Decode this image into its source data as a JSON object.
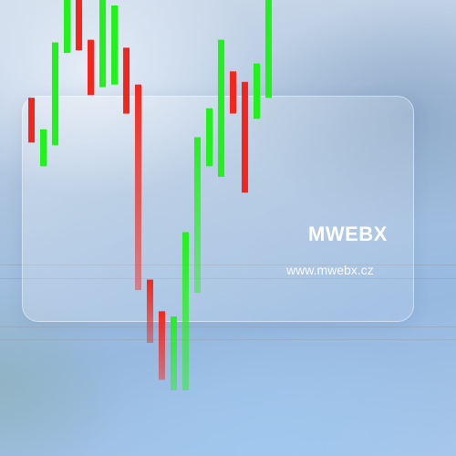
{
  "brand": {
    "name": "MWEBX",
    "url": "www.mwebx.cz"
  },
  "colors": {
    "up": "#22f21c",
    "down": "#f2261c"
  },
  "chart_data": {
    "type": "bar",
    "description_kind": "candlestick-style price bars",
    "bars": [
      {
        "low": 30,
        "high": 47,
        "dir": "down"
      },
      {
        "low": 21,
        "high": 35,
        "dir": "up"
      },
      {
        "low": 29,
        "high": 68,
        "dir": "up"
      },
      {
        "low": 64,
        "high": 87,
        "dir": "up"
      },
      {
        "low": 65,
        "high": 90,
        "dir": "down"
      },
      {
        "low": 48,
        "high": 69,
        "dir": "down"
      },
      {
        "low": 51,
        "high": 98,
        "dir": "up"
      },
      {
        "low": 52,
        "high": 82,
        "dir": "up"
      },
      {
        "low": 41,
        "high": 66,
        "dir": "down"
      },
      {
        "low": -26,
        "high": 52,
        "dir": "down"
      },
      {
        "low": -46,
        "high": -22,
        "dir": "down"
      },
      {
        "low": -60,
        "high": -34,
        "dir": "down"
      },
      {
        "low": -64,
        "high": -36,
        "dir": "up"
      },
      {
        "low": -64,
        "high": -4,
        "dir": "up"
      },
      {
        "low": -27,
        "high": 32,
        "dir": "up"
      },
      {
        "low": 21,
        "high": 43,
        "dir": "up"
      },
      {
        "low": 17,
        "high": 69,
        "dir": "up"
      },
      {
        "low": 41,
        "high": 57,
        "dir": "down"
      },
      {
        "low": 11,
        "high": 53,
        "dir": "down"
      },
      {
        "low": 39,
        "high": 60,
        "dir": "up"
      },
      {
        "low": 47,
        "high": 111,
        "dir": "up"
      }
    ]
  }
}
